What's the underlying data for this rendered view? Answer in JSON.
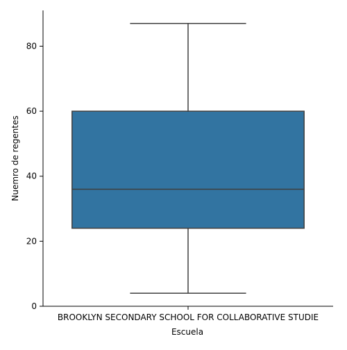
{
  "chart_data": {
    "type": "box",
    "title": "",
    "xlabel": "Escuela",
    "ylabel": "Nuemro de regentes",
    "categories": [
      "BROOKLYN SECONDARY SCHOOL FOR COLLABORATIVE STUDIE"
    ],
    "boxes": [
      {
        "category": "BROOKLYN SECONDARY SCHOOL FOR COLLABORATIVE STUDIE",
        "whisker_low": 4,
        "q1": 24,
        "median": 36,
        "q3": 60,
        "whisker_high": 87
      }
    ],
    "y_ticks": [
      0,
      20,
      40,
      60,
      80
    ],
    "ylim": [
      0,
      91
    ],
    "grid": false,
    "colors": {
      "box_fill": "#3274a1",
      "line": "#3f3f3f",
      "axis": "#000000"
    }
  }
}
